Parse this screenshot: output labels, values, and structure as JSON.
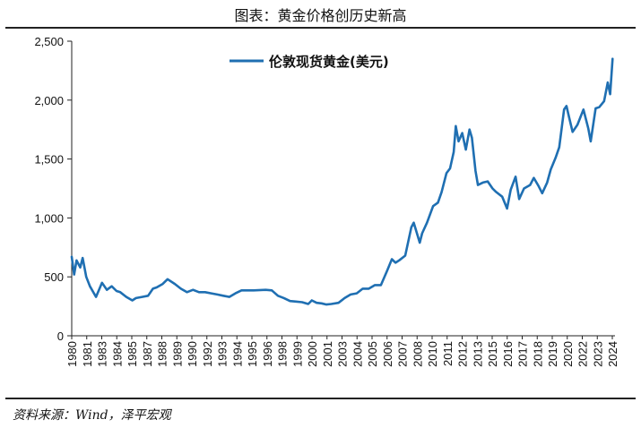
{
  "header": {
    "title": "图表：黄金价格创历史新高"
  },
  "footer": {
    "source": "资料来源：Wind，泽平宏观"
  },
  "chart_data": {
    "type": "line",
    "title": "",
    "xlabel": "",
    "ylabel": "",
    "ylim": [
      0,
      2500
    ],
    "y_ticks": [
      0,
      500,
      1000,
      1500,
      2000,
      2500
    ],
    "y_tick_labels": [
      "0",
      "500",
      "1,000",
      "1,500",
      "2,000",
      "2,500"
    ],
    "x_ticks": [
      "1980",
      "1981",
      "1983",
      "1984",
      "1985",
      "1987",
      "1988",
      "1989",
      "1990",
      "1992",
      "1993",
      "1994",
      "1995",
      "1996",
      "1998",
      "1999",
      "2000",
      "2001",
      "2003",
      "2004",
      "2005",
      "2006",
      "2007",
      "2008",
      "2010",
      "2011",
      "2012",
      "2013",
      "2015",
      "2016",
      "2017",
      "2018",
      "2019",
      "2020",
      "2022",
      "2023",
      "2024"
    ],
    "grid": false,
    "legend": "top-center",
    "series": [
      {
        "name": "伦敦现货黄金(美元)",
        "color": "#1f6fb2",
        "x": [
          1980.0,
          1980.2,
          1980.4,
          1980.7,
          1980.9,
          1981.2,
          1981.5,
          1982.0,
          1982.5,
          1982.9,
          1983.3,
          1983.7,
          1984.0,
          1984.5,
          1985.0,
          1985.3,
          1985.8,
          1986.3,
          1986.7,
          1987.0,
          1987.5,
          1987.9,
          1988.5,
          1989.0,
          1989.5,
          1990.0,
          1990.5,
          1991.0,
          1991.5,
          1992.0,
          1992.5,
          1993.0,
          1993.5,
          1994.0,
          1995.0,
          1996.0,
          1996.5,
          1997.0,
          1997.5,
          1998.0,
          1998.5,
          1999.0,
          1999.5,
          1999.8,
          2000.2,
          2000.6,
          2001.0,
          2001.4,
          2002.0,
          2002.5,
          2003.0,
          2003.5,
          2004.0,
          2004.5,
          2005.0,
          2005.5,
          2006.0,
          2006.4,
          2006.7,
          2007.0,
          2007.5,
          2008.0,
          2008.2,
          2008.7,
          2008.9,
          2009.3,
          2009.8,
          2010.2,
          2010.5,
          2010.9,
          2011.2,
          2011.5,
          2011.67,
          2011.9,
          2012.2,
          2012.5,
          2012.8,
          2013.0,
          2013.3,
          2013.5,
          2013.9,
          2014.3,
          2014.7,
          2015.0,
          2015.5,
          2015.9,
          2016.2,
          2016.6,
          2016.9,
          2017.3,
          2017.8,
          2018.1,
          2018.5,
          2018.8,
          2019.2,
          2019.5,
          2019.9,
          2020.2,
          2020.6,
          2020.8,
          2021.0,
          2021.3,
          2021.7,
          2022.2,
          2022.6,
          2022.8,
          2023.2,
          2023.5,
          2023.9,
          2024.2,
          2024.4,
          2024.6
        ],
        "values": [
          670,
          520,
          640,
          580,
          660,
          500,
          420,
          330,
          450,
          390,
          420,
          380,
          370,
          330,
          300,
          320,
          330,
          340,
          400,
          410,
          440,
          480,
          440,
          400,
          370,
          390,
          370,
          370,
          360,
          350,
          340,
          330,
          360,
          385,
          385,
          390,
          385,
          340,
          320,
          295,
          290,
          285,
          270,
          300,
          280,
          275,
          265,
          270,
          280,
          320,
          350,
          360,
          400,
          400,
          430,
          430,
          550,
          650,
          620,
          640,
          680,
          920,
          960,
          790,
          870,
          960,
          1100,
          1130,
          1220,
          1380,
          1420,
          1560,
          1780,
          1650,
          1720,
          1580,
          1750,
          1680,
          1400,
          1280,
          1300,
          1310,
          1250,
          1220,
          1180,
          1080,
          1240,
          1350,
          1160,
          1250,
          1280,
          1340,
          1270,
          1210,
          1300,
          1410,
          1510,
          1600,
          1920,
          1950,
          1860,
          1730,
          1790,
          1920,
          1760,
          1650,
          1930,
          1940,
          1990,
          2150,
          2050,
          2350
        ]
      }
    ]
  }
}
